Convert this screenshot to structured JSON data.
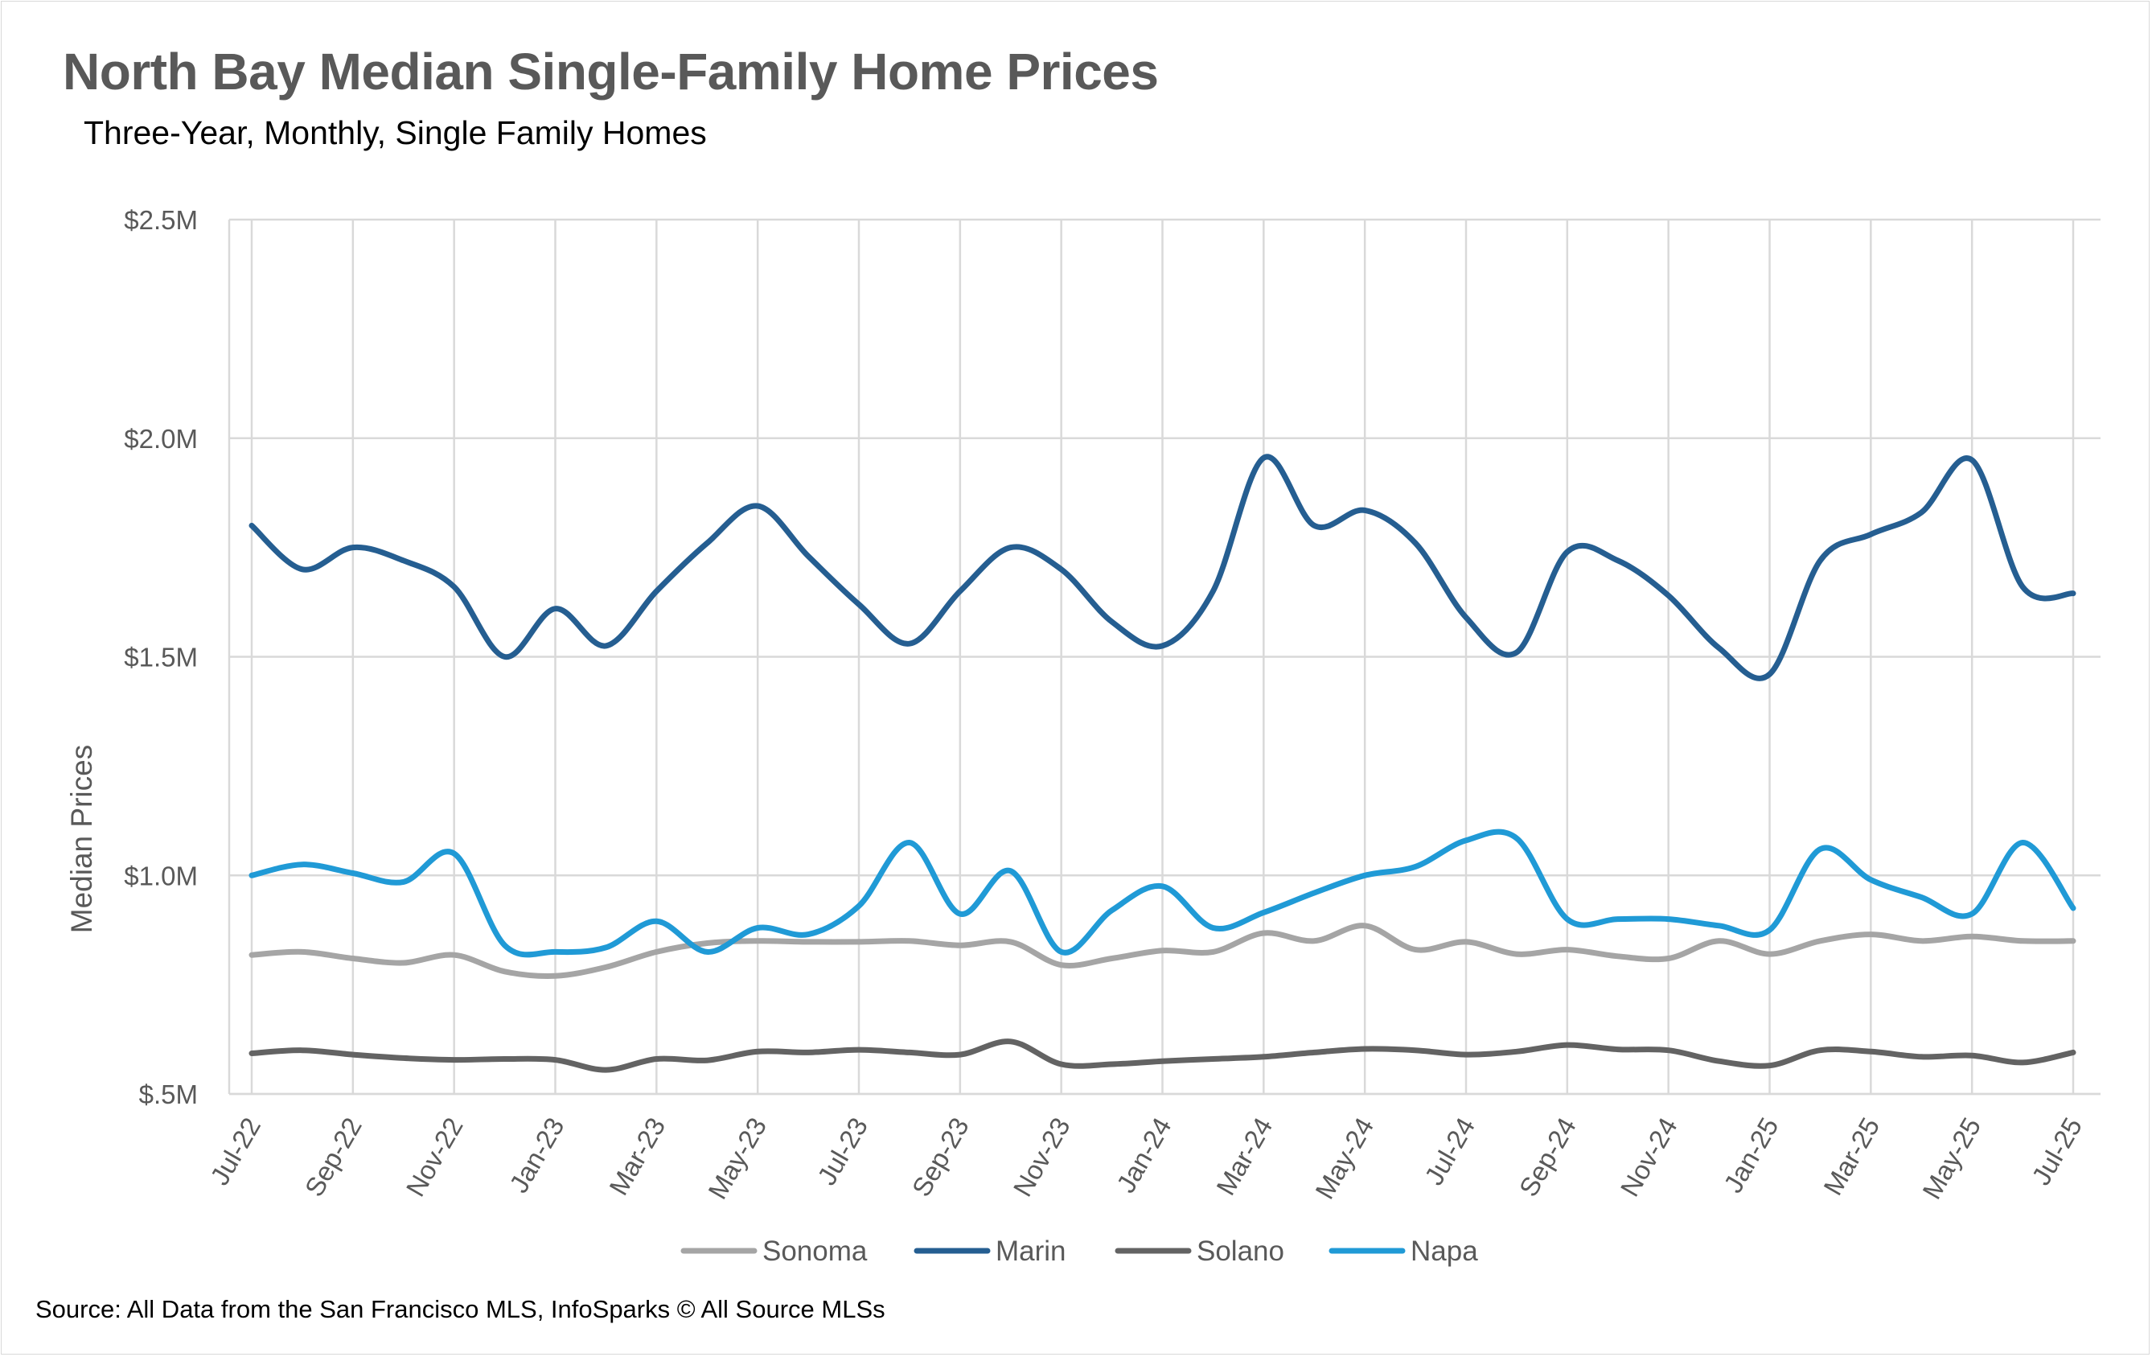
{
  "title": "North Bay Median Single-Family Home Prices",
  "subtitle": "Three-Year, Monthly, Single Family Homes",
  "source": "Source: All Data from the San Francisco MLS, InfoSparks © All Source MLSs",
  "chart_data": {
    "type": "line",
    "title": "North Bay Median Single-Family Home Prices",
    "subtitle": "Three-Year, Monthly, Single Family Homes",
    "xlabel": "",
    "ylabel": "Median Prices",
    "ylim": [
      500000,
      2500000
    ],
    "yticks": [
      500000,
      1000000,
      1500000,
      2000000,
      2500000
    ],
    "ytick_labels": [
      "$.5M",
      "$1.0M",
      "$1.5M",
      "$2.0M",
      "$2.5M"
    ],
    "x": [
      "Jul-22",
      "Aug-22",
      "Sep-22",
      "Oct-22",
      "Nov-22",
      "Dec-22",
      "Jan-23",
      "Feb-23",
      "Mar-23",
      "Apr-23",
      "May-23",
      "Jun-23",
      "Jul-23",
      "Aug-23",
      "Sep-23",
      "Oct-23",
      "Nov-23",
      "Dec-23",
      "Jan-24",
      "Feb-24",
      "Mar-24",
      "Apr-24",
      "May-24",
      "Jun-24",
      "Jul-24",
      "Aug-24",
      "Sep-24",
      "Oct-24",
      "Nov-24",
      "Dec-24",
      "Jan-25",
      "Feb-25",
      "Mar-25",
      "Apr-25",
      "May-25",
      "Jun-25",
      "Jul-25"
    ],
    "xtick_labels": [
      "Jul-22",
      "Sep-22",
      "Nov-22",
      "Jan-23",
      "Mar-23",
      "May-23",
      "Jul-23",
      "Sep-23",
      "Nov-23",
      "Jan-24",
      "Mar-24",
      "May-24",
      "Jul-24",
      "Sep-24",
      "Nov-24",
      "Jan-25",
      "Mar-25",
      "May-25",
      "Jul-25"
    ],
    "grid": true,
    "legend_position": "bottom",
    "series": [
      {
        "name": "Sonoma",
        "color": "#a5a5a5",
        "values": [
          818000,
          825000,
          810000,
          800000,
          818000,
          780000,
          770000,
          790000,
          825000,
          845000,
          850000,
          848000,
          848000,
          850000,
          840000,
          848000,
          795000,
          810000,
          828000,
          825000,
          868000,
          850000,
          885000,
          830000,
          848000,
          820000,
          830000,
          815000,
          810000,
          850000,
          820000,
          850000,
          865000,
          850000,
          860000,
          850000,
          850000
        ]
      },
      {
        "name": "Marin",
        "color": "#255e91",
        "values": [
          1800000,
          1700000,
          1750000,
          1720000,
          1660000,
          1500000,
          1610000,
          1525000,
          1650000,
          1760000,
          1845000,
          1730000,
          1620000,
          1530000,
          1650000,
          1750000,
          1700000,
          1580000,
          1525000,
          1650000,
          1955000,
          1800000,
          1835000,
          1760000,
          1590000,
          1510000,
          1740000,
          1720000,
          1640000,
          1520000,
          1460000,
          1720000,
          1780000,
          1830000,
          1950000,
          1660000,
          1645000
        ]
      },
      {
        "name": "Solano",
        "color": "#636363",
        "values": [
          593000,
          600000,
          590000,
          582000,
          578000,
          580000,
          578000,
          555000,
          580000,
          577000,
          597000,
          595000,
          601000,
          595000,
          590000,
          620000,
          568000,
          568000,
          575000,
          580000,
          585000,
          595000,
          603000,
          600000,
          590000,
          597000,
          612000,
          602000,
          600000,
          575000,
          565000,
          600000,
          597000,
          585000,
          588000,
          572000,
          595000
        ]
      },
      {
        "name": "Napa",
        "color": "#209ad6",
        "values": [
          1000000,
          1025000,
          1005000,
          985000,
          1050000,
          840000,
          825000,
          835000,
          895000,
          825000,
          880000,
          865000,
          930000,
          1075000,
          912000,
          1010000,
          825000,
          920000,
          975000,
          880000,
          915000,
          960000,
          1000000,
          1020000,
          1080000,
          1085000,
          900000,
          900000,
          900000,
          885000,
          875000,
          1060000,
          990000,
          950000,
          912000,
          1075000,
          925000
        ]
      }
    ]
  }
}
